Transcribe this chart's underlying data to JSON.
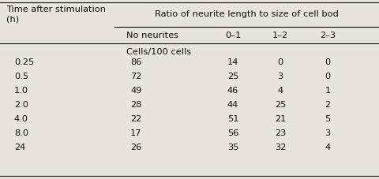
{
  "header1_line1": "Time after stimulation",
  "header1_line2": "(h)",
  "header2": "Ratio of neurite length to size of cell bod",
  "subheaders": [
    "No neurites",
    "0–1",
    "1–2",
    "2–3"
  ],
  "unit_label": "Cells/100 cells",
  "time_col": [
    "0.25",
    "0.5",
    "1.0",
    "2.0",
    "4.0",
    "8.0",
    "24"
  ],
  "data": [
    [
      86,
      14,
      0,
      0
    ],
    [
      72,
      25,
      3,
      0
    ],
    [
      49,
      46,
      4,
      1
    ],
    [
      28,
      44,
      25,
      2
    ],
    [
      22,
      51,
      21,
      5
    ],
    [
      17,
      56,
      23,
      3
    ],
    [
      26,
      35,
      32,
      4
    ]
  ],
  "bg_color": "#e8e4dc",
  "text_color": "#111111",
  "font_size": 8.2
}
